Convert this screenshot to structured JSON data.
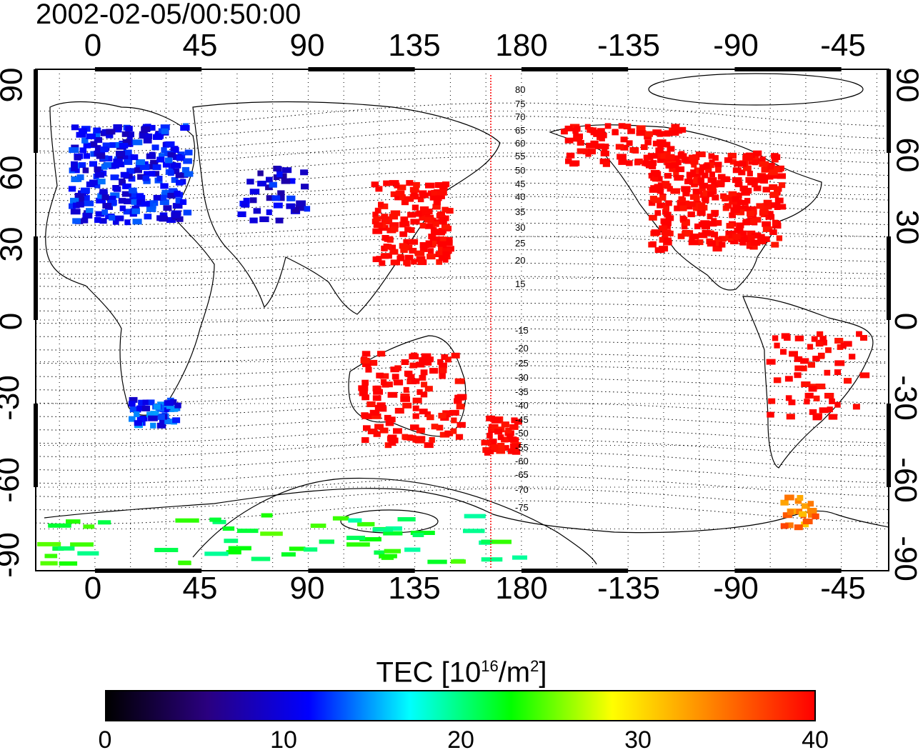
{
  "title": "2002-02-05/00:50:00",
  "top_lon_labels": [
    "0",
    "45",
    "90",
    "135",
    "180",
    "-135",
    "-90",
    "-45"
  ],
  "bottom_lon_labels": [
    "0",
    "45",
    "90",
    "135",
    "180",
    "-135",
    "-90",
    "-45"
  ],
  "left_lat_labels": [
    "90",
    "60",
    "30",
    "0",
    "-30",
    "-60",
    "-90"
  ],
  "right_lat_labels": [
    "90",
    "60",
    "30",
    "0",
    "-30",
    "-60",
    "-90"
  ],
  "magnetic_lat_labels": [
    "80",
    "75",
    "70",
    "65",
    "60",
    "55",
    "50",
    "45",
    "40",
    "35",
    "30",
    "25",
    "20",
    "15",
    "-15",
    "-20",
    "-25",
    "-30",
    "-35",
    "-40",
    "-45",
    "-50",
    "-55",
    "-60",
    "-65",
    "-70",
    "-75"
  ],
  "colorbar": {
    "title_main": "TEC  [10",
    "title_sup1": "16",
    "title_mid": "/m",
    "title_sup2": "2",
    "title_end": "]",
    "ticks": [
      "0",
      "10",
      "20",
      "30",
      "40"
    ],
    "range": [
      0,
      40
    ],
    "stops": [
      "#000000",
      "#2a0080",
      "#0000ff",
      "#00ffff",
      "#00ff00",
      "#ffff00",
      "#ff8000",
      "#ff0000"
    ]
  },
  "terminator_line": {
    "color": "#ff0000",
    "longitude": 167
  },
  "regions": [
    {
      "name": "europe",
      "lat": [
        35,
        70
      ],
      "lon": [
        -10,
        40
      ],
      "tec": 11,
      "count": 260
    },
    {
      "name": "north-america",
      "lat": [
        25,
        60
      ],
      "lon": [
        -125,
        -70
      ],
      "tec": 40,
      "count": 320
    },
    {
      "name": "alaska-canada",
      "lat": [
        55,
        70
      ],
      "lon": [
        -165,
        -110
      ],
      "tec": 40,
      "count": 90
    },
    {
      "name": "east-asia",
      "lat": [
        20,
        50
      ],
      "lon": [
        118,
        150
      ],
      "tec": 40,
      "count": 150
    },
    {
      "name": "australia",
      "lat": [
        -45,
        -12
      ],
      "lon": [
        112,
        155
      ],
      "tec": 40,
      "count": 120
    },
    {
      "name": "new-zealand",
      "lat": [
        -48,
        -35
      ],
      "lon": [
        165,
        180
      ],
      "tec": 40,
      "count": 40
    },
    {
      "name": "southern-africa",
      "lat": [
        -38,
        -28
      ],
      "lon": [
        15,
        35
      ],
      "tec": 12,
      "count": 50
    },
    {
      "name": "south-america",
      "lat": [
        -35,
        -5
      ],
      "lon": [
        -75,
        -35
      ],
      "tec": 40,
      "count": 60
    },
    {
      "name": "central-asia",
      "lat": [
        35,
        55
      ],
      "lon": [
        60,
        90
      ],
      "tec": 10,
      "count": 40
    },
    {
      "name": "antarctic-peninsula",
      "lat": [
        -75,
        -63
      ],
      "lon": [
        -70,
        -55
      ],
      "tec": 34,
      "count": 20
    },
    {
      "name": "antarctica",
      "lat": [
        -88,
        -70
      ],
      "lon": [
        -20,
        180
      ],
      "tec": 22,
      "count": 60
    }
  ]
}
